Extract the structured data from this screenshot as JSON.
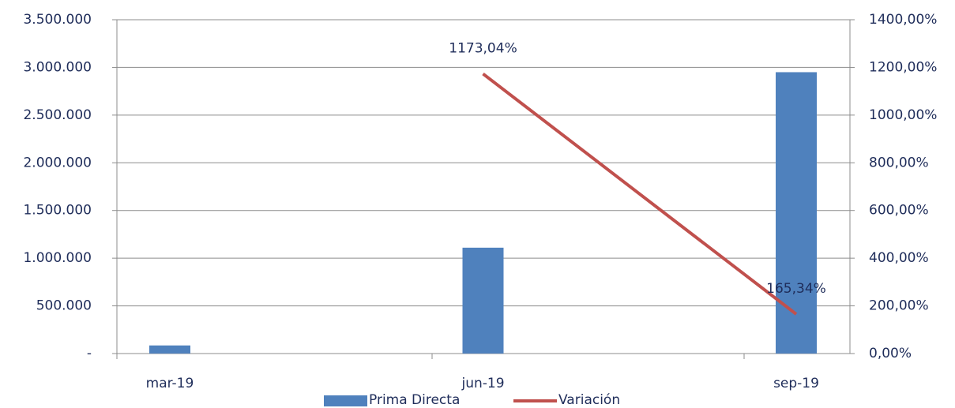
{
  "chart_data": {
    "type": "bar",
    "categories": [
      "mar-19",
      "jun-19",
      "sep-19"
    ],
    "series": [
      {
        "name": "Prima Directa",
        "color": "#4f81bd",
        "values": [
          85000,
          1110000,
          2950000
        ]
      },
      {
        "name": "Variación",
        "type": "line",
        "axis": "y2",
        "color": "#c0504d",
        "values": [
          null,
          1173.04,
          165.34
        ],
        "value_labels": [
          null,
          "1173,04%",
          "165,34%"
        ]
      }
    ],
    "ylim": [
      0,
      3500000
    ],
    "yticks": [
      {
        "value": 0,
        "label": "-"
      },
      {
        "value": 500000,
        "label": "500.000"
      },
      {
        "value": 1000000,
        "label": "1.000.000"
      },
      {
        "value": 1500000,
        "label": "1.500.000"
      },
      {
        "value": 2000000,
        "label": "2.000.000"
      },
      {
        "value": 2500000,
        "label": "2.500.000"
      },
      {
        "value": 3000000,
        "label": "3.000.000"
      },
      {
        "value": 3500000,
        "label": "3.500.000"
      }
    ],
    "y2lim": [
      0,
      1400
    ],
    "y2ticks": [
      {
        "value": 0,
        "label": "0,00%"
      },
      {
        "value": 200,
        "label": "200,00%"
      },
      {
        "value": 400,
        "label": "400,00%"
      },
      {
        "value": 600,
        "label": "600,00%"
      },
      {
        "value": 800,
        "label": "800,00%"
      },
      {
        "value": 1000,
        "label": "1000,00%"
      },
      {
        "value": 1200,
        "label": "1200,00%"
      },
      {
        "value": 1400,
        "label": "1400,00%"
      }
    ],
    "grid": true,
    "legend": "bottom"
  }
}
